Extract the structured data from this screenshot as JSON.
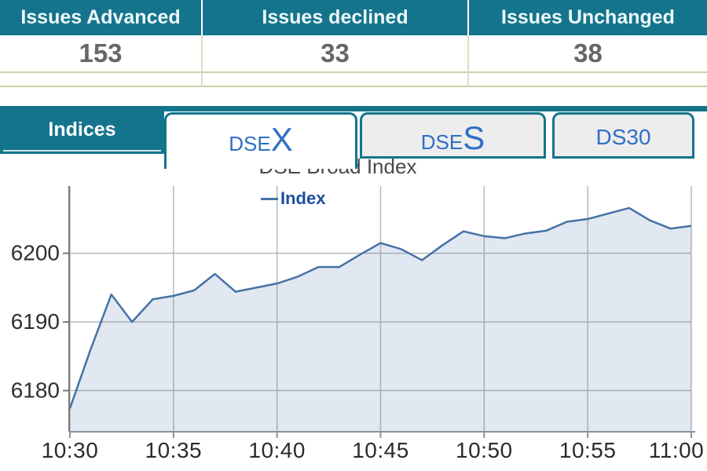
{
  "colors": {
    "teal_accent": "#14748c",
    "tab_text_blue": "#2e6fc7",
    "table_value_gray": "#666666",
    "table_border_olive": "#cdcda6",
    "line_blue": "#4572a7",
    "area_fill": "rgba(69,114,167,0.16)",
    "grid_gray": "#b9b9b9",
    "legend_text_blue": "#1e4fa0"
  },
  "stats_table": {
    "columns": [
      {
        "header": "Issues Advanced",
        "value": "153"
      },
      {
        "header": "Issues declined",
        "value": "33"
      },
      {
        "header": "Issues Unchanged",
        "value": "38"
      }
    ]
  },
  "tabs": {
    "section_label": "Indices",
    "items": [
      {
        "prefix": "DSE",
        "suffix": "X",
        "active": true
      },
      {
        "prefix": "DSE",
        "suffix": "S",
        "active": false
      },
      {
        "prefix": "DS30",
        "suffix": "",
        "active": false
      }
    ]
  },
  "chart_data": {
    "type": "area",
    "title": "DSE Broad Index",
    "legend": {
      "label": "Index",
      "position": "top-center"
    },
    "series": [
      {
        "name": "Index",
        "x_minutes": [
          0,
          1,
          2,
          3,
          4,
          5,
          6,
          7,
          8,
          9,
          10,
          11,
          12,
          13,
          14,
          15,
          16,
          17,
          18,
          19,
          20,
          21,
          22,
          23,
          24,
          25,
          26,
          27,
          28,
          29,
          30
        ],
        "values": [
          6177.4,
          6186,
          6194,
          6190,
          6193.3,
          6193.8,
          6194.6,
          6197,
          6194.4,
          6195,
          6195.6,
          6196.6,
          6198,
          6198,
          6199.8,
          6201.5,
          6200.6,
          6199,
          6201.2,
          6203.2,
          6202.5,
          6202.2,
          6202.9,
          6203.3,
          6204.6,
          6205,
          6205.8,
          6206.6,
          6204.8,
          6203.6,
          6204
        ]
      }
    ],
    "x_tick_minutes": [
      0,
      5,
      10,
      15,
      20,
      25,
      30
    ],
    "x_tick_labels": [
      "10:30",
      "10:35",
      "10:40",
      "10:45",
      "10:50",
      "10:55",
      "11:00"
    ],
    "y_ticks": [
      6180,
      6190,
      6200
    ],
    "y_tick_labels": [
      "6180",
      "6190",
      "6200"
    ],
    "xlim_minutes": [
      0,
      30
    ],
    "ylim": [
      6174,
      6209.8
    ],
    "grid": true
  }
}
